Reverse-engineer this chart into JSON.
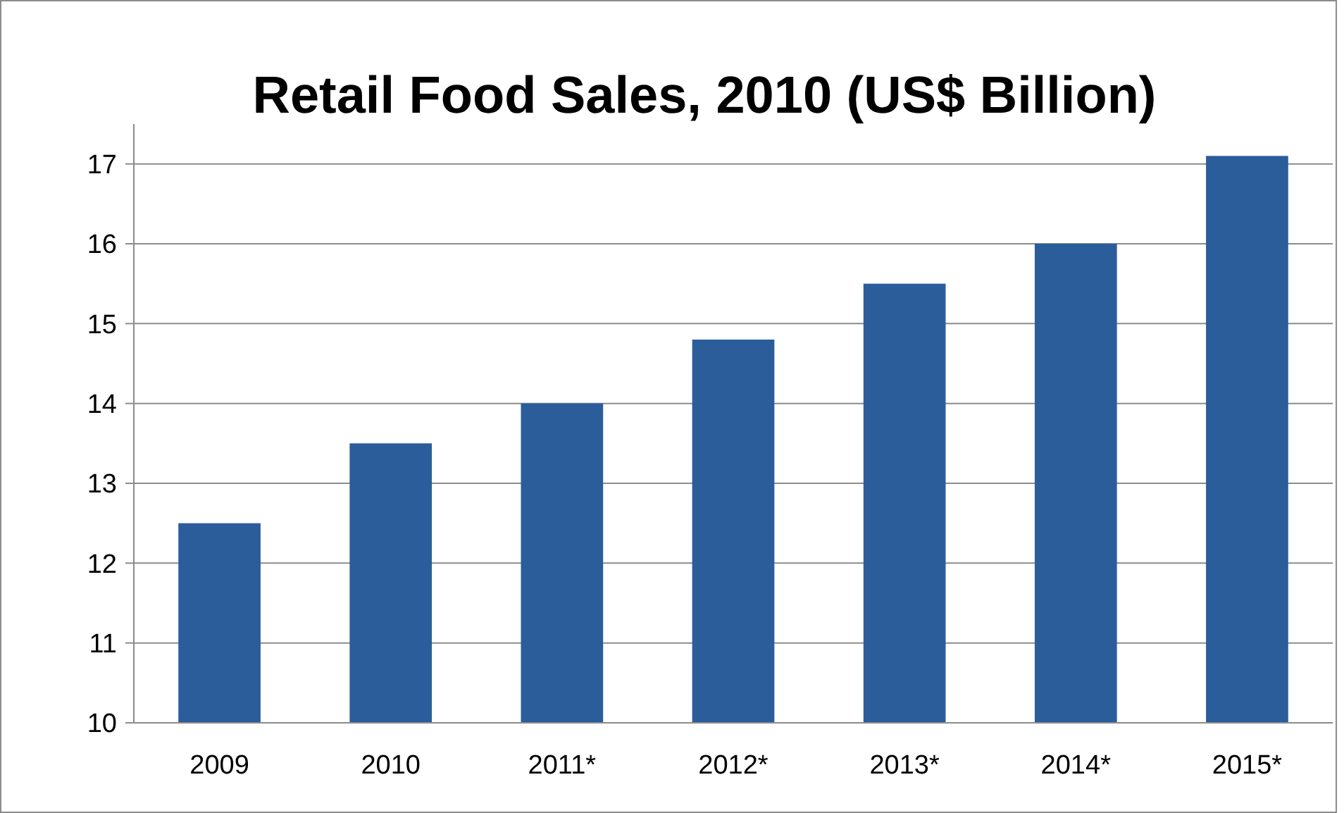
{
  "chart_data": {
    "type": "bar",
    "title": "Retail Food Sales, 2010 (US$ Billion)",
    "categories": [
      "2009",
      "2010",
      "2011*",
      "2012*",
      "2013*",
      "2014*",
      "2015*"
    ],
    "values": [
      12.5,
      13.5,
      14,
      14.8,
      15.5,
      16,
      17.1
    ],
    "color": "#2b5d9b",
    "ylim": [
      10,
      17.5
    ],
    "yticks": [
      10,
      11,
      12,
      13,
      14,
      15,
      16,
      17
    ],
    "grid": "y"
  }
}
